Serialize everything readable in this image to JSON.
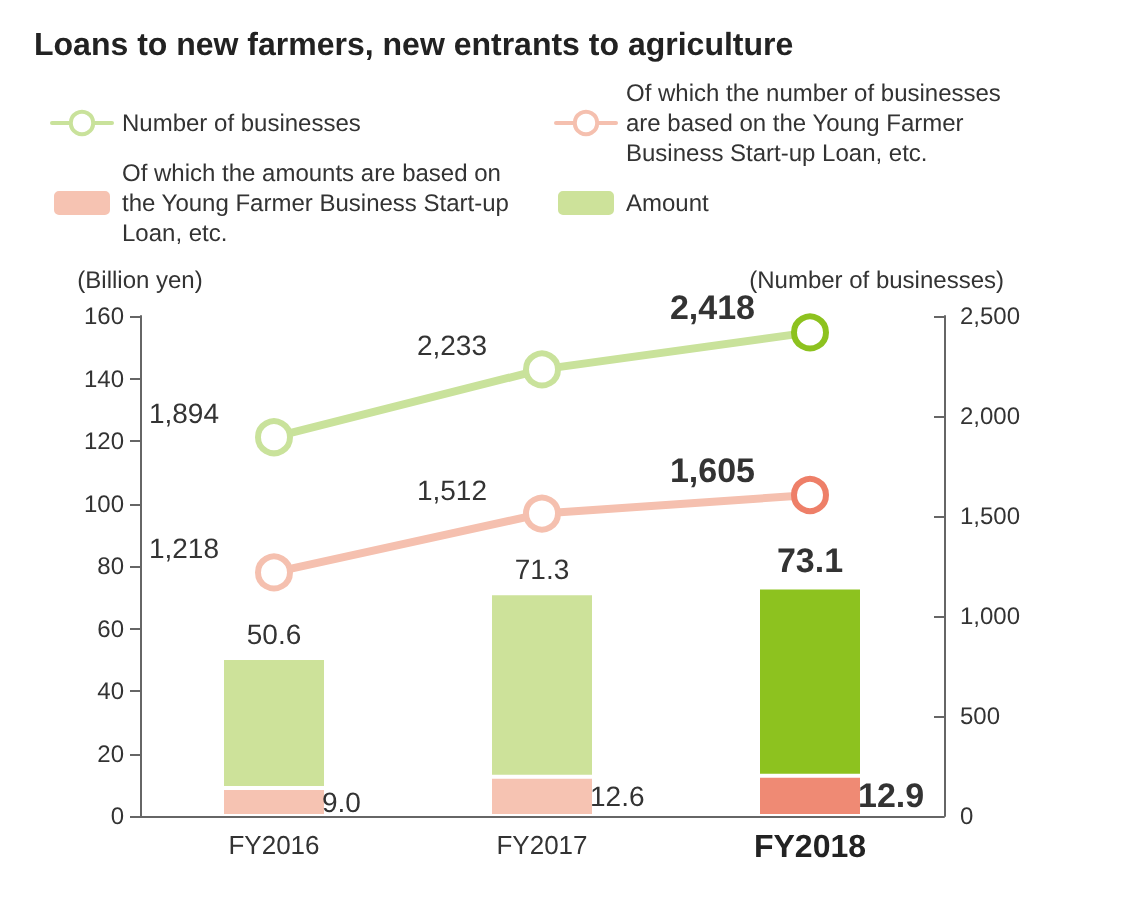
{
  "chart_data": {
    "type": "bar",
    "title": "Loans to new farmers, new entrants to agriculture",
    "categories": [
      "FY2016",
      "FY2017",
      "FY2018"
    ],
    "ylabel": "(Billion yen)",
    "y2label": "(Number of businesses)",
    "stacked": true,
    "ylim": [
      0,
      160
    ],
    "yticks": [
      0,
      20,
      40,
      60,
      80,
      100,
      120,
      140,
      160
    ],
    "y2lim": [
      0,
      2500
    ],
    "y2ticks": [
      0,
      500,
      {
        "value": 1000,
        "label": "1,000"
      },
      {
        "value": 1500,
        "label": "1,500"
      },
      {
        "value": 2000,
        "label": "2,000"
      },
      {
        "value": 2500,
        "label": "2,500"
      }
    ],
    "totals": [
      "50.6",
      "71.3",
      "73.1"
    ],
    "legend": "top",
    "marker": "circle",
    "grid": false,
    "series": [
      {
        "type": "line",
        "axis": "y2",
        "name": "Number of businesses",
        "color": "#c9e29b",
        "colors": [
          "#c9e29b",
          "#c9e29b",
          "#8dc21f"
        ],
        "values": [
          1894,
          2233,
          2418
        ],
        "value_labels": [
          "1,894",
          "2,233",
          "2,418"
        ]
      },
      {
        "type": "line",
        "axis": "y2",
        "name": "Of which the number of businesses are based on the Young Farmer Business Start-up Loan, etc.",
        "color": "#f5c0af",
        "colors": [
          "#f5c0af",
          "#f5c0af",
          "#ee7f68"
        ],
        "values": [
          1218,
          1512,
          1605
        ],
        "value_labels": [
          "1,218",
          "1,512",
          "1,605"
        ]
      },
      {
        "name": "Of which the amounts are based on the Young Farmer Business Start-up Loan, etc.",
        "color": "#f6c3b2",
        "colors": [
          "#f6c3b2",
          "#f6c3b2",
          "#ef8a74"
        ],
        "values": [
          9.0,
          12.6,
          12.9
        ],
        "value_labels": [
          "9.0",
          "12.6",
          "12.9"
        ]
      },
      {
        "name": "Amount",
        "color": "#cde29a",
        "colors": [
          "#cde29a",
          "#cde29a",
          "#8dc21f"
        ],
        "values": [
          41.6,
          58.7,
          60.2
        ]
      }
    ]
  }
}
